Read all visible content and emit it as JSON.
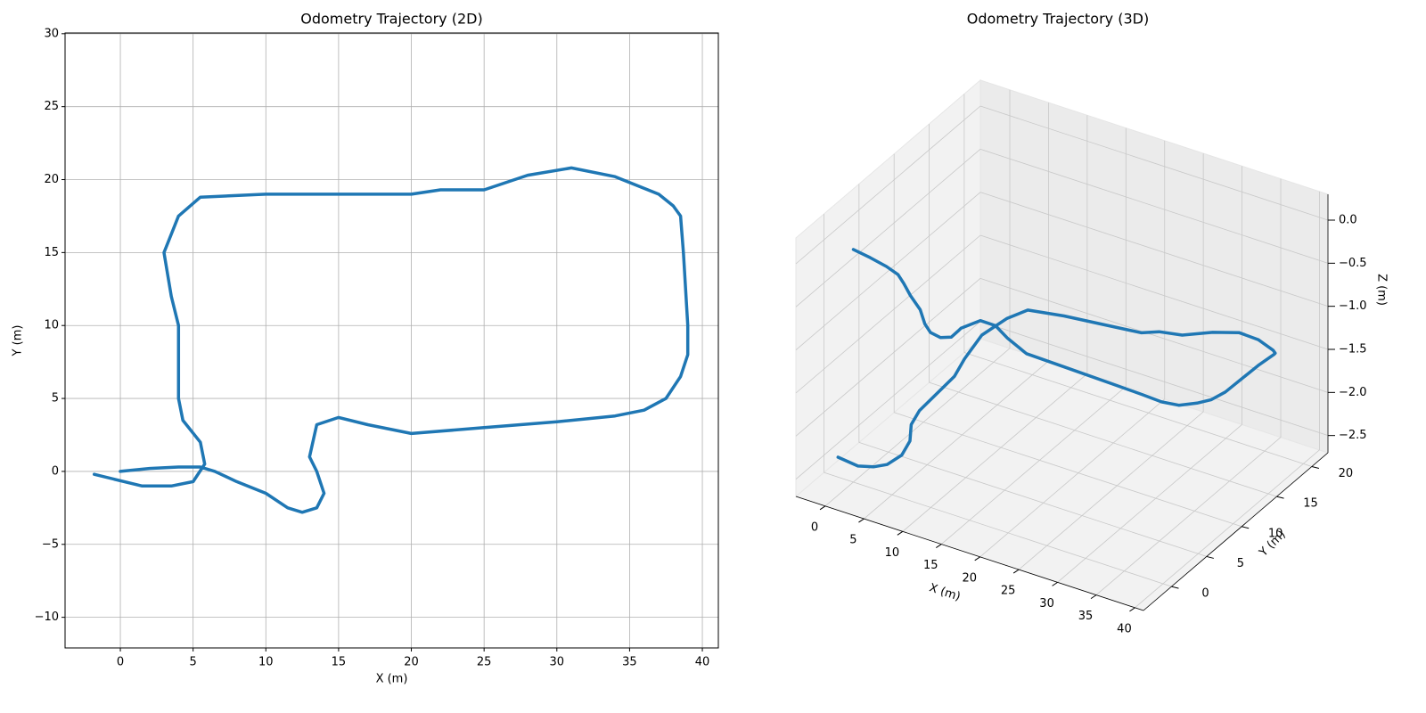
{
  "chart_data": [
    {
      "type": "line",
      "title": "Odometry Trajectory (2D)",
      "xlabel": "X (m)",
      "ylabel": "Y (m)",
      "color": "#1f77b4",
      "grid": true,
      "x": [
        0,
        2,
        4,
        5.5,
        6.5,
        8,
        10,
        11.5,
        12.5,
        13.5,
        14,
        13.5,
        13,
        13.5,
        15,
        17,
        20,
        25,
        30,
        34,
        36,
        37.5,
        38.5,
        39,
        39,
        38.7,
        38.5,
        38,
        37,
        34,
        31,
        28,
        25,
        22,
        20,
        15,
        10,
        5.5,
        4,
        3,
        3.5,
        4,
        4,
        4.3,
        5.5,
        5.8,
        5,
        3.5,
        1.5,
        -1.8
      ],
      "values": [
        0,
        0.2,
        0.3,
        0.3,
        0,
        -0.7,
        -1.5,
        -2.5,
        -2.8,
        -2.5,
        -1.5,
        0,
        1,
        3.2,
        3.7,
        3.2,
        2.6,
        3,
        3.4,
        3.8,
        4.2,
        5,
        6.5,
        8,
        10,
        15,
        17.5,
        18.2,
        19,
        20.2,
        20.8,
        20.3,
        19.3,
        19.3,
        19,
        19,
        19,
        18.8,
        17.5,
        15,
        12,
        10,
        5,
        3.5,
        2,
        0.5,
        -0.7,
        -1,
        -1,
        -0.2
      ],
      "xlim": [
        -3.8,
        41.1
      ],
      "ylim": [
        -12.1,
        30.05
      ],
      "xticks": [
        0,
        5,
        10,
        15,
        20,
        25,
        30,
        35,
        40
      ],
      "yticks": [
        {
          "value": -10,
          "label": "−10"
        },
        {
          "value": -5,
          "label": "−5"
        },
        0,
        5,
        10,
        15,
        20,
        25,
        30
      ]
    },
    {
      "type": "line3d",
      "title": "Odometry Trajectory (3D)",
      "xlabel": "X (m)",
      "ylabel": "Y (m)",
      "zlabel": "Z (m)",
      "color": "#1f77b4",
      "grid": true,
      "x": [
        0,
        2,
        4,
        5.5,
        6.5,
        8,
        10,
        11.5,
        12.5,
        13.5,
        14,
        13.5,
        13,
        13.5,
        15,
        17,
        20,
        25,
        30,
        34,
        36,
        37.5,
        38.5,
        39,
        39,
        38.7,
        38.5,
        38,
        37,
        34,
        31,
        28,
        25,
        22,
        20,
        15,
        10,
        5.5,
        4,
        3,
        3.5,
        4,
        4,
        4.3,
        5.5,
        5.8,
        5,
        3.5,
        1.5,
        -1.8
      ],
      "y": [
        0,
        0.2,
        0.3,
        0.3,
        0,
        -0.7,
        -1.5,
        -2.5,
        -2.8,
        -2.5,
        -1.5,
        0,
        1,
        3.2,
        3.7,
        3.2,
        2.6,
        3,
        3.4,
        3.8,
        4.2,
        5,
        6.5,
        8,
        10,
        15,
        17.5,
        18.2,
        19,
        20.2,
        20.8,
        20.3,
        19.3,
        19.3,
        19,
        19,
        19,
        18.8,
        17.5,
        15,
        12,
        10,
        5,
        3.5,
        2,
        0.5,
        -0.7,
        -1,
        -1,
        -0.2
      ],
      "z": [
        0,
        -0.05,
        -0.1,
        -0.15,
        -0.2,
        -0.25,
        -0.3,
        -0.35,
        -0.4,
        -0.45,
        -0.5,
        -0.55,
        -0.6,
        -0.65,
        -0.7,
        -0.75,
        -0.8,
        -0.85,
        -0.9,
        -0.95,
        -1,
        -1.05,
        -1.1,
        -1.15,
        -1.2,
        -1.25,
        -1.3,
        -1.35,
        -1.4,
        -1.45,
        -1.5,
        -1.55,
        -1.6,
        -1.65,
        -1.7,
        -1.75,
        -1.8,
        -1.85,
        -1.9,
        -1.95,
        -2,
        -2.05,
        -2.1,
        -2.15,
        -2.2,
        -2.25,
        -2.3,
        -2.35,
        -2.4,
        -2.45
      ],
      "xlim": [
        -3.8,
        41.1
      ],
      "ylim": [
        -4,
        22.3
      ],
      "zlim": [
        -2.7,
        0.3
      ],
      "xticks": [
        0,
        5,
        10,
        15,
        20,
        25,
        30,
        35,
        40
      ],
      "yticks": [
        0,
        5,
        10,
        15,
        20
      ],
      "zticks": [
        {
          "value": 0,
          "label": "0.0"
        },
        {
          "value": -0.5,
          "label": "−0.5"
        },
        {
          "value": -1,
          "label": "−1.0"
        },
        {
          "value": -1.5,
          "label": "−1.5"
        },
        {
          "value": -2,
          "label": "−2.0"
        },
        {
          "value": -2.5,
          "label": "−2.5"
        }
      ]
    }
  ]
}
